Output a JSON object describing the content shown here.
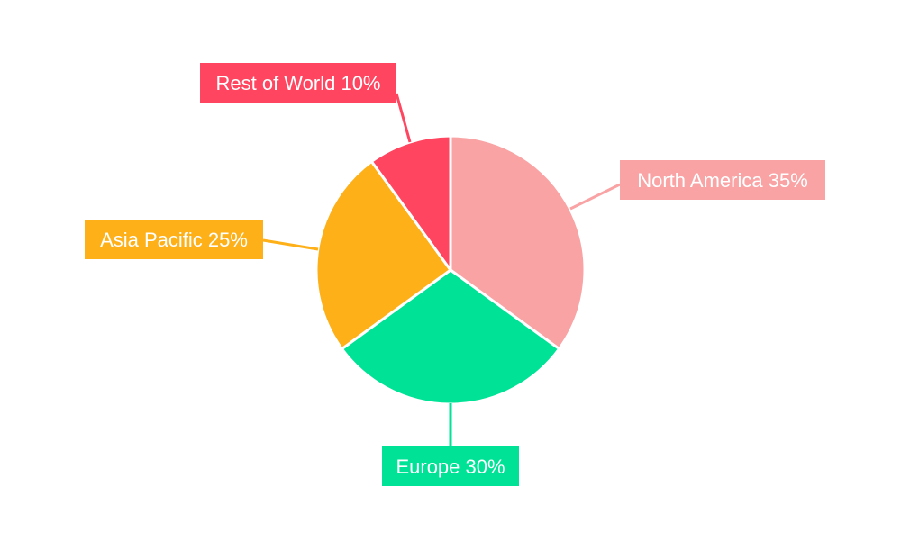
{
  "chart_data": {
    "type": "pie",
    "title": "",
    "start_angle_deg": 0,
    "direction": "clockwise",
    "slices": [
      {
        "label": "North America",
        "value": 35,
        "display": "North America 35%",
        "color": "#F9A3A4"
      },
      {
        "label": "Europe",
        "value": 30,
        "display": "Europe 30%",
        "color": "#00E396"
      },
      {
        "label": "Asia Pacific",
        "value": 25,
        "display": "Asia Pacific 25%",
        "color": "#FEB019"
      },
      {
        "label": "Rest of World",
        "value": 10,
        "display": "Rest of World 10%",
        "color": "#FF4560"
      }
    ]
  }
}
